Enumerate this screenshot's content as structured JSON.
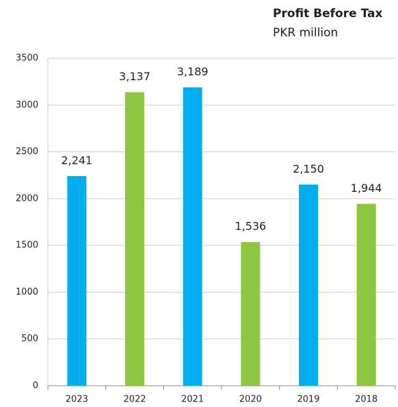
{
  "chart_data": {
    "type": "bar",
    "title": "Profit Before Tax",
    "subtitle": "PKR million",
    "categories": [
      "2023",
      "2022",
      "2021",
      "2020",
      "2019",
      "2018"
    ],
    "values": [
      2241,
      3137,
      3189,
      1536,
      2150,
      1944
    ],
    "value_labels": [
      "2,241",
      "3,137",
      "3,189",
      "1,536",
      "2,150",
      "1,944"
    ],
    "colors": [
      "#00aeef",
      "#8dc63f",
      "#00aeef",
      "#8dc63f",
      "#00aeef",
      "#8dc63f"
    ],
    "ylim": [
      0,
      3500
    ],
    "yticks": [
      0,
      500,
      1000,
      1500,
      2000,
      2500,
      3000,
      3500
    ],
    "grid": true
  }
}
